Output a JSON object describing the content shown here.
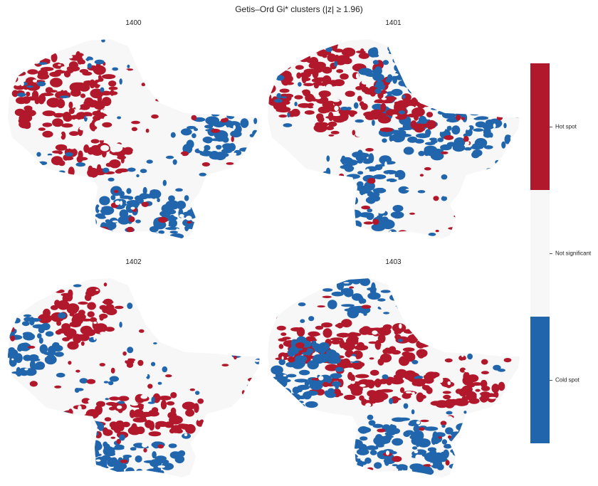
{
  "title": "Getis–Ord Gi* clusters (|z| ≥ 1.96)",
  "panels": [
    {
      "label": "1400"
    },
    {
      "label": "1401"
    },
    {
      "label": "1402"
    },
    {
      "label": "1403"
    }
  ],
  "colorbar": {
    "categories": [
      "Hot spot",
      "Not significant",
      "Cold spot"
    ],
    "colors": {
      "hot": "#b2182b",
      "ns": "#f7f7f7",
      "cold": "#2166ac"
    }
  }
}
